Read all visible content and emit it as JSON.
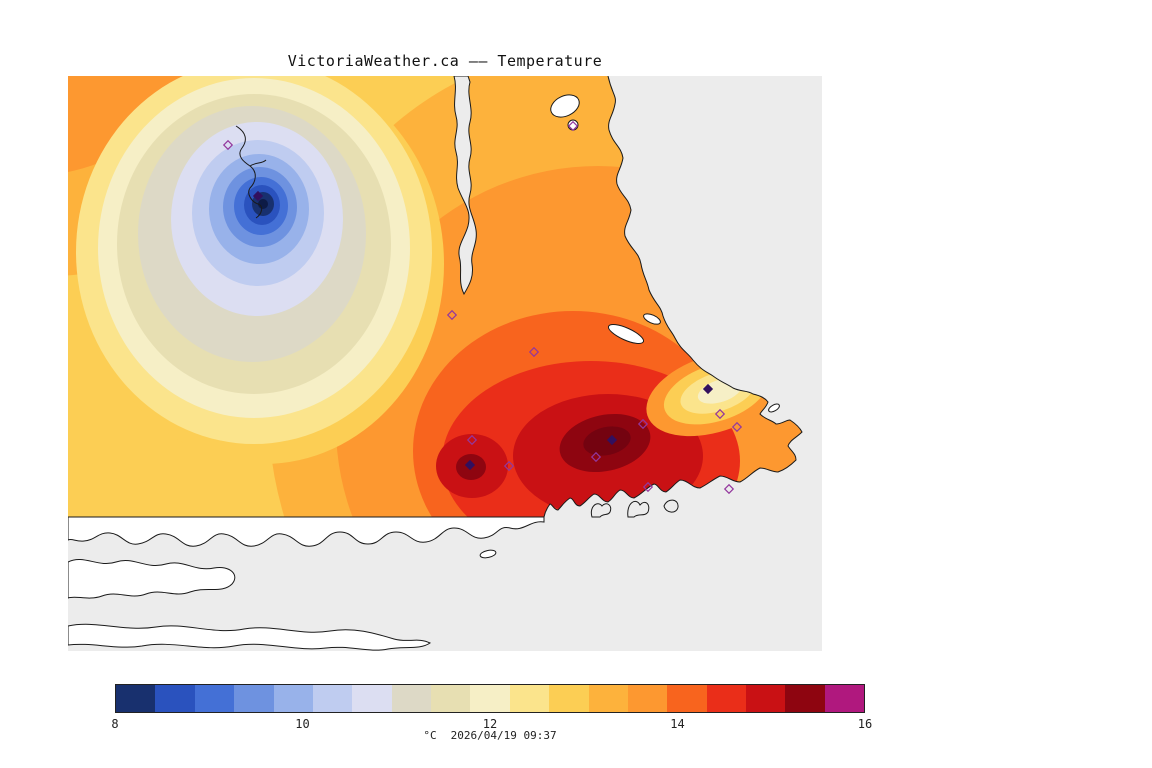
{
  "title": "VictoriaWeather.ca —— Temperature",
  "map": {
    "background_color": "#ECECEC",
    "field_base_color": "#FCCE54",
    "land_color": "#FFFFFF",
    "coastline_color": "#1A1A1A",
    "station_markers": {
      "open_color": "#93379D",
      "filled_color": "#32105E",
      "open": [
        [
          160,
          69
        ],
        [
          505,
          50
        ],
        [
          384,
          239
        ],
        [
          466,
          276
        ],
        [
          652,
          338
        ],
        [
          669,
          351
        ],
        [
          575,
          348
        ],
        [
          528,
          381
        ],
        [
          580,
          411
        ],
        [
          661,
          413
        ],
        [
          441,
          390
        ],
        [
          404,
          364
        ]
      ],
      "filled": [
        [
          190,
          120
        ],
        [
          640,
          313
        ],
        [
          544,
          364
        ],
        [
          402,
          389
        ]
      ]
    }
  },
  "colorbar": {
    "unit": "°C",
    "datetime": "2026/04/19 09:37",
    "ticks": [
      "8",
      "10",
      "12",
      "14",
      "16"
    ],
    "min": 8,
    "max": 16,
    "colors": [
      "#18306E",
      "#2A52BE",
      "#4470D6",
      "#6E92E0",
      "#98B2EA",
      "#BFCCF0",
      "#DCDEF2",
      "#DDD9C6",
      "#E7DFB2",
      "#F6EFC6",
      "#FBE48C",
      "#FCCE54",
      "#FDB23C",
      "#FD9830",
      "#F8641E",
      "#EA2E19",
      "#C91114",
      "#8E0510",
      "#B0187E"
    ]
  }
}
